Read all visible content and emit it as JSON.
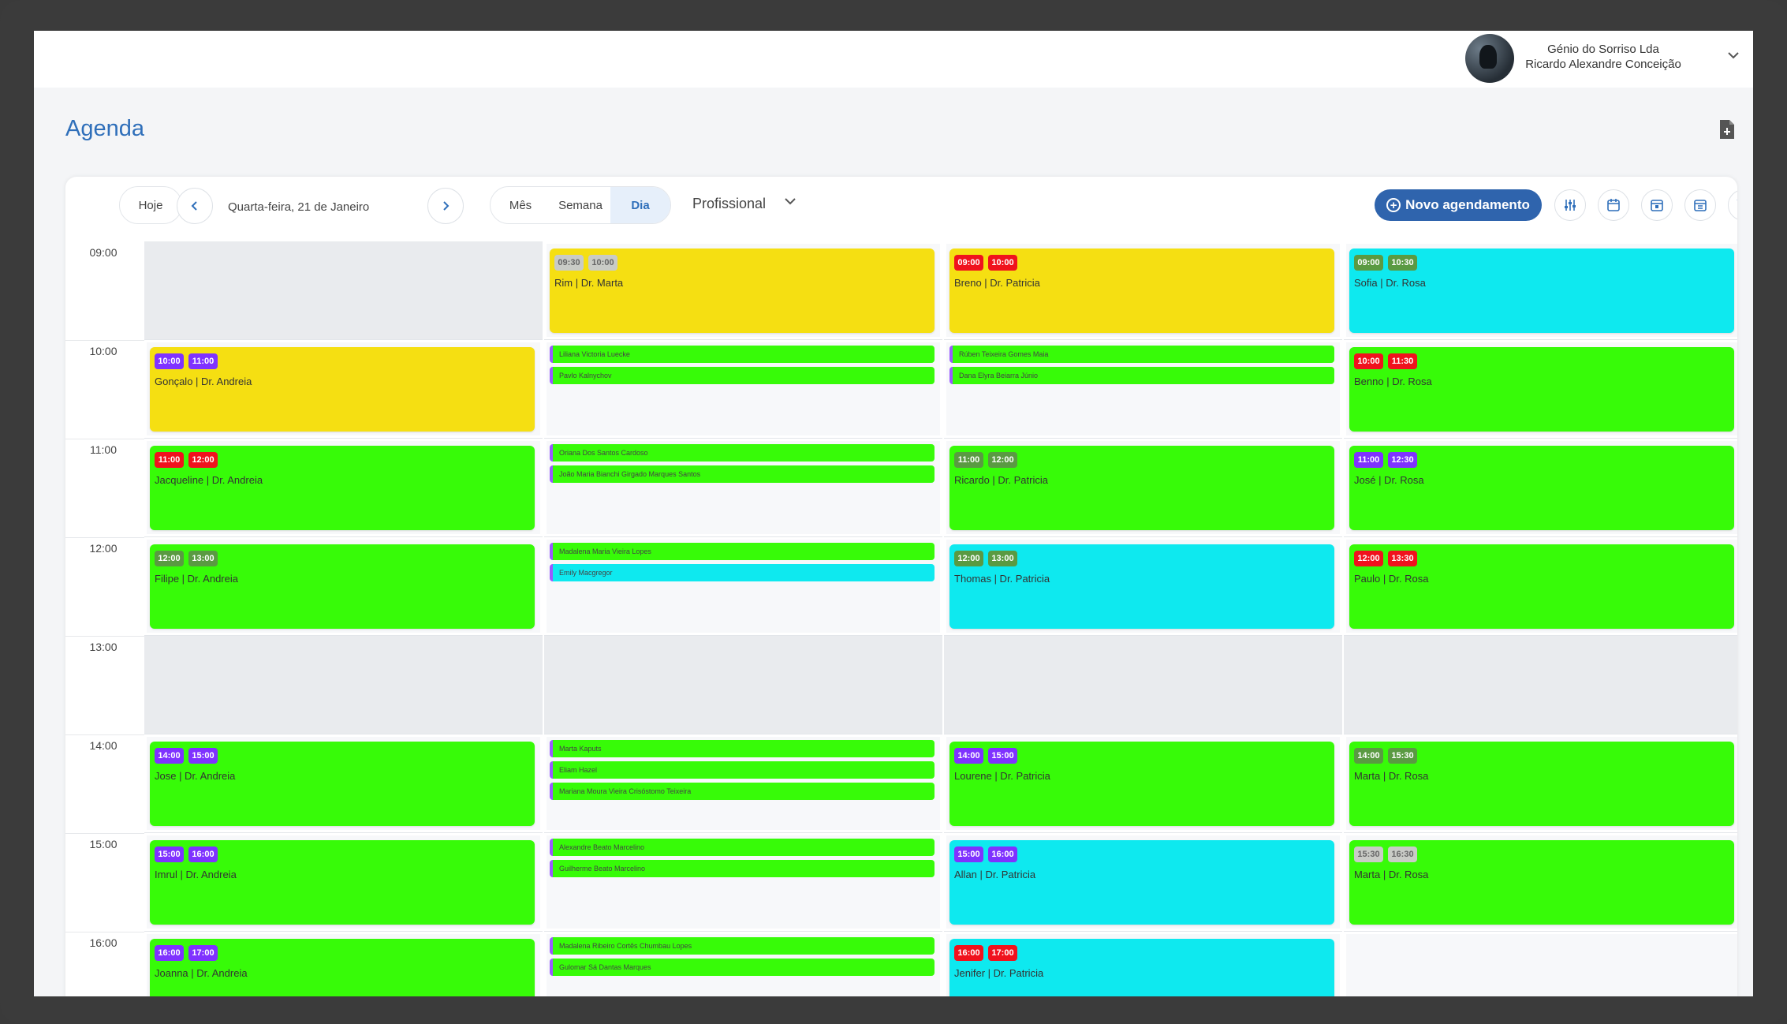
{
  "header": {
    "company": "Génio do Sorriso Lda",
    "user": "Ricardo Alexandre Conceição"
  },
  "page": {
    "title": "Agenda"
  },
  "toolbar": {
    "today": "Hoje",
    "date": "Quarta-feira, 21 de Janeiro",
    "views": [
      "Mês",
      "Semana",
      "Dia"
    ],
    "active_view": "Dia",
    "filter": "Profissional",
    "new_button": "Novo agendamento"
  },
  "times": [
    "09:00",
    "10:00",
    "11:00",
    "12:00",
    "13:00",
    "14:00",
    "15:00",
    "16:00"
  ],
  "colors": {
    "yellow": "#f5df12",
    "green": "#37fb08",
    "cyan": "#0ee9ef",
    "badge_purple": "#7f32ff",
    "badge_red": "#f0121d",
    "badge_olive": "#5a9a42",
    "badge_grey": "#c9cbc6"
  },
  "columns": [
    {
      "name": "andreia",
      "rows": [
        {
          "type": "empty"
        },
        {
          "type": "appt",
          "color": "yellow",
          "badge": "badge_purple",
          "start": "10:00",
          "end": "11:00",
          "text": "Gonçalo | Dr. Andreia"
        },
        {
          "type": "appt",
          "color": "green",
          "badge": "badge_red",
          "start": "11:00",
          "end": "12:00",
          "text": "Jacqueline | Dr. Andreia"
        },
        {
          "type": "appt",
          "color": "green",
          "badge": "badge_olive",
          "start": "12:00",
          "end": "13:00",
          "text": "Filipe | Dr. Andreia"
        },
        {
          "type": "empty"
        },
        {
          "type": "appt",
          "color": "green",
          "badge": "badge_purple",
          "start": "14:00",
          "end": "15:00",
          "text": "Jose | Dr. Andreia"
        },
        {
          "type": "appt",
          "color": "green",
          "badge": "badge_purple",
          "start": "15:00",
          "end": "16:00",
          "text": "Imrul | Dr. Andreia"
        },
        {
          "type": "appt",
          "color": "green",
          "badge": "badge_purple",
          "start": "16:00",
          "end": "17:00",
          "text": "Joanna | Dr. Andreia"
        }
      ]
    },
    {
      "name": "marta",
      "rows": [
        {
          "type": "appt",
          "color": "yellow",
          "badge": "badge_grey",
          "start": "09:30",
          "end": "10:00",
          "text": "Rim | Dr. Marta"
        },
        {
          "type": "list",
          "items": [
            {
              "color": "green",
              "text": "Liliana Victoria Luecke"
            },
            {
              "color": "green",
              "text": "Pavlo Kalnychov"
            }
          ]
        },
        {
          "type": "list",
          "items": [
            {
              "color": "green",
              "text": "Oriana Dos Santos Cardoso"
            },
            {
              "color": "green",
              "text": "João Maria Bianchi Girgado Marques Santos"
            }
          ]
        },
        {
          "type": "list",
          "items": [
            {
              "color": "green",
              "text": "Madalena Maria Vieira Lopes"
            },
            {
              "color": "cyan",
              "text": "Emily Macgregor"
            }
          ]
        },
        {
          "type": "empty"
        },
        {
          "type": "list",
          "items": [
            {
              "color": "green",
              "text": "Marta Kaputs"
            },
            {
              "color": "green",
              "text": "Eliam Hazel"
            },
            {
              "color": "green",
              "text": "Mariana Moura Vieira Crisóstomo Teixeira"
            }
          ]
        },
        {
          "type": "list",
          "items": [
            {
              "color": "green",
              "text": "Alexandre Beato Marcelino"
            },
            {
              "color": "green",
              "text": "Guilherme Beato Marcelino"
            }
          ]
        },
        {
          "type": "list",
          "items": [
            {
              "color": "green",
              "text": "Madalena Ribeiro Cortês Chumbau Lopes"
            },
            {
              "color": "green",
              "text": "Gulomar Sá Dantas Marques"
            }
          ]
        }
      ]
    },
    {
      "name": "patricia",
      "rows": [
        {
          "type": "appt",
          "color": "yellow",
          "badge": "badge_red",
          "start": "09:00",
          "end": "10:00",
          "text": "Breno | Dr. Patricia"
        },
        {
          "type": "list",
          "items": [
            {
              "color": "green",
              "text": "Rúben Teixeira Gomes Maia"
            },
            {
              "color": "green",
              "text": "Dana Elyra Beiarra Júnio"
            }
          ]
        },
        {
          "type": "appt",
          "color": "green",
          "badge": "badge_olive",
          "start": "11:00",
          "end": "12:00",
          "text": "Ricardo | Dr. Patricia"
        },
        {
          "type": "appt",
          "color": "cyan",
          "badge": "badge_olive",
          "start": "12:00",
          "end": "13:00",
          "text": "Thomas | Dr. Patricia"
        },
        {
          "type": "empty"
        },
        {
          "type": "appt",
          "color": "green",
          "badge": "badge_purple",
          "start": "14:00",
          "end": "15:00",
          "text": "Lourene | Dr. Patricia"
        },
        {
          "type": "appt",
          "color": "cyan",
          "badge": "badge_purple",
          "start": "15:00",
          "end": "16:00",
          "text": "Allan | Dr. Patricia"
        },
        {
          "type": "appt",
          "color": "cyan",
          "badge": "badge_red",
          "start": "16:00",
          "end": "17:00",
          "text": "Jenifer | Dr. Patricia"
        }
      ]
    },
    {
      "name": "rosa",
      "rows": [
        {
          "type": "appt",
          "color": "cyan",
          "badge": "badge_olive",
          "start": "09:00",
          "end": "10:30",
          "text": "Sofia | Dr. Rosa"
        },
        {
          "type": "appt",
          "color": "green",
          "badge": "badge_red",
          "start": "10:00",
          "end": "11:30",
          "text": "Benno | Dr. Rosa"
        },
        {
          "type": "appt",
          "color": "green",
          "badge": "badge_purple",
          "start": "11:00",
          "end": "12:30",
          "text": "José | Dr. Rosa"
        },
        {
          "type": "appt",
          "color": "green",
          "badge": "badge_red",
          "start": "12:00",
          "end": "13:30",
          "text": "Paulo | Dr. Rosa"
        },
        {
          "type": "empty"
        },
        {
          "type": "appt",
          "color": "green",
          "badge": "badge_olive",
          "start": "14:00",
          "end": "15:30",
          "text": "Marta | Dr. Rosa"
        },
        {
          "type": "appt",
          "color": "green",
          "badge": "badge_grey",
          "start": "15:30",
          "end": "16:30",
          "text": "Marta | Dr. Rosa"
        },
        {
          "type": "blank"
        }
      ]
    }
  ]
}
